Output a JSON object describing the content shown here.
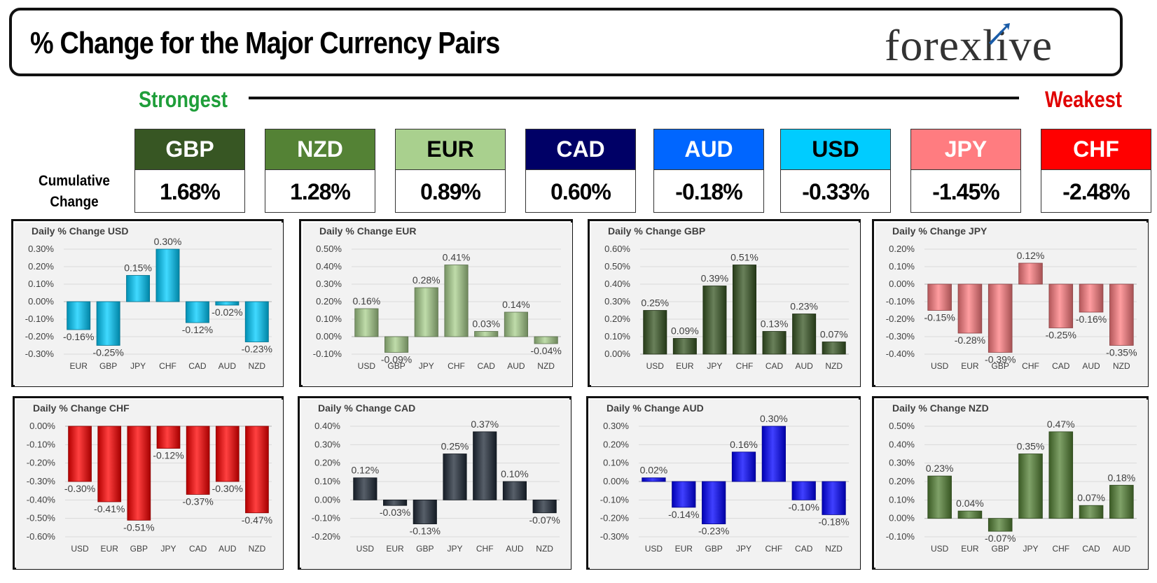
{
  "header": {
    "title": "% Change for the Major Currency Pairs",
    "logo_text": "forexlive"
  },
  "ranking": {
    "strongest_label": "Strongest",
    "weakest_label": "Weakest",
    "cumulative_label_line1": "Cumulative",
    "cumulative_label_line2": "Change",
    "currencies": [
      {
        "code": "GBP",
        "value": "1.68%",
        "bg": "#375623",
        "fg": "#ffffff"
      },
      {
        "code": "NZD",
        "value": "1.28%",
        "bg": "#548235",
        "fg": "#ffffff"
      },
      {
        "code": "EUR",
        "value": "0.89%",
        "bg": "#a9d08e",
        "fg": "#000000"
      },
      {
        "code": "CAD",
        "value": "0.60%",
        "bg": "#000066",
        "fg": "#ffffff"
      },
      {
        "code": "AUD",
        "value": "-0.18%",
        "bg": "#0066ff",
        "fg": "#ffffff"
      },
      {
        "code": "USD",
        "value": "-0.33%",
        "bg": "#00ccff",
        "fg": "#000000"
      },
      {
        "code": "JPY",
        "value": "-1.45%",
        "bg": "#ff7c80",
        "fg": "#ffffff"
      },
      {
        "code": "CHF",
        "value": "-2.48%",
        "bg": "#ff0000",
        "fg": "#ffffff"
      }
    ]
  },
  "chart_data": [
    {
      "type": "bar",
      "title": "Daily % Change USD",
      "color": "#00ccff",
      "categories": [
        "EUR",
        "GBP",
        "JPY",
        "CHF",
        "CAD",
        "AUD",
        "NZD"
      ],
      "values": [
        -0.16,
        -0.25,
        0.15,
        0.3,
        -0.12,
        -0.02,
        -0.23
      ],
      "labels": [
        "-0.16%",
        "-0.25%",
        "0.15%",
        "0.30%",
        "-0.12%",
        "-0.02%",
        "-0.23%"
      ],
      "ylim": [
        -0.3,
        0.3
      ],
      "ticks": [
        "0.30%",
        "0.20%",
        "0.10%",
        "0.00%",
        "-0.10%",
        "-0.20%",
        "-0.30%"
      ]
    },
    {
      "type": "bar",
      "title": "Daily % Change EUR",
      "color": "#a9d08e",
      "categories": [
        "USD",
        "GBP",
        "JPY",
        "CHF",
        "CAD",
        "AUD",
        "NZD"
      ],
      "values": [
        0.16,
        -0.09,
        0.28,
        0.41,
        0.03,
        0.14,
        -0.04
      ],
      "labels": [
        "0.16%",
        "-0.09%",
        "0.28%",
        "0.41%",
        "0.03%",
        "0.14%",
        "-0.04%"
      ],
      "ylim": [
        -0.1,
        0.5
      ],
      "ticks": [
        "0.50%",
        "0.40%",
        "0.30%",
        "0.20%",
        "0.10%",
        "0.00%",
        "-0.10%"
      ]
    },
    {
      "type": "bar",
      "title": "Daily % Change GBP",
      "color": "#375623",
      "categories": [
        "USD",
        "EUR",
        "JPY",
        "CHF",
        "CAD",
        "AUD",
        "NZD"
      ],
      "values": [
        0.25,
        0.09,
        0.39,
        0.51,
        0.13,
        0.23,
        0.07
      ],
      "labels": [
        "0.25%",
        "0.09%",
        "0.39%",
        "0.51%",
        "0.13%",
        "0.23%",
        "0.07%"
      ],
      "ylim": [
        0.0,
        0.6
      ],
      "ticks": [
        "0.60%",
        "0.50%",
        "0.40%",
        "0.30%",
        "0.20%",
        "0.10%",
        "0.00%"
      ]
    },
    {
      "type": "bar",
      "title": "Daily % Change JPY",
      "color": "#ff7c80",
      "categories": [
        "USD",
        "EUR",
        "GBP",
        "CHF",
        "CAD",
        "AUD",
        "NZD"
      ],
      "values": [
        -0.15,
        -0.28,
        -0.39,
        0.12,
        -0.25,
        -0.16,
        -0.35
      ],
      "labels": [
        "-0.15%",
        "-0.28%",
        "-0.39%",
        "0.12%",
        "-0.25%",
        "-0.16%",
        "-0.35%"
      ],
      "ylim": [
        -0.4,
        0.2
      ],
      "ticks": [
        "0.20%",
        "0.10%",
        "0.00%",
        "-0.10%",
        "-0.20%",
        "-0.30%",
        "-0.40%"
      ]
    },
    {
      "type": "bar",
      "title": "Daily % Change CHF",
      "color": "#ff0000",
      "categories": [
        "USD",
        "EUR",
        "GBP",
        "JPY",
        "CAD",
        "AUD",
        "NZD"
      ],
      "values": [
        -0.3,
        -0.41,
        -0.51,
        -0.12,
        -0.37,
        -0.3,
        -0.47
      ],
      "labels": [
        "-0.30%",
        "-0.41%",
        "-0.51%",
        "-0.12%",
        "-0.37%",
        "-0.30%",
        "-0.47%"
      ],
      "ylim": [
        -0.6,
        0.0
      ],
      "ticks": [
        "0.00%",
        "-0.10%",
        "-0.20%",
        "-0.30%",
        "-0.40%",
        "-0.50%",
        "-0.60%"
      ]
    },
    {
      "type": "bar",
      "title": "Daily % Change CAD",
      "color": "#1f2937",
      "categories": [
        "USD",
        "EUR",
        "GBP",
        "JPY",
        "CHF",
        "AUD",
        "NZD"
      ],
      "values": [
        0.12,
        -0.03,
        -0.13,
        0.25,
        0.37,
        0.1,
        -0.07
      ],
      "labels": [
        "0.12%",
        "-0.03%",
        "-0.13%",
        "0.25%",
        "0.37%",
        "0.10%",
        "-0.07%"
      ],
      "ylim": [
        -0.2,
        0.4
      ],
      "ticks": [
        "0.40%",
        "0.30%",
        "0.20%",
        "0.10%",
        "0.00%",
        "-0.10%",
        "-0.20%"
      ]
    },
    {
      "type": "bar",
      "title": "Daily % Change AUD",
      "color": "#0000ff",
      "categories": [
        "USD",
        "EUR",
        "GBP",
        "JPY",
        "CHF",
        "CAD",
        "NZD"
      ],
      "values": [
        0.02,
        -0.14,
        -0.23,
        0.16,
        0.3,
        -0.1,
        -0.18
      ],
      "labels": [
        "0.02%",
        "-0.14%",
        "-0.23%",
        "0.16%",
        "0.30%",
        "-0.10%",
        "-0.18%"
      ],
      "ylim": [
        -0.3,
        0.3
      ],
      "ticks": [
        "0.30%",
        "0.20%",
        "0.10%",
        "0.00%",
        "-0.10%",
        "-0.20%",
        "-0.30%"
      ]
    },
    {
      "type": "bar",
      "title": "Daily % Change NZD",
      "color": "#548235",
      "categories": [
        "USD",
        "EUR",
        "GBP",
        "JPY",
        "CHF",
        "CAD",
        "AUD"
      ],
      "values": [
        0.23,
        0.04,
        -0.07,
        0.35,
        0.47,
        0.07,
        0.18
      ],
      "labels": [
        "0.23%",
        "0.04%",
        "-0.07%",
        "0.35%",
        "0.47%",
        "0.07%",
        "0.18%"
      ],
      "ylim": [
        -0.1,
        0.5
      ],
      "ticks": [
        "0.50%",
        "0.40%",
        "0.30%",
        "0.20%",
        "0.10%",
        "0.00%",
        "-0.10%"
      ]
    }
  ]
}
